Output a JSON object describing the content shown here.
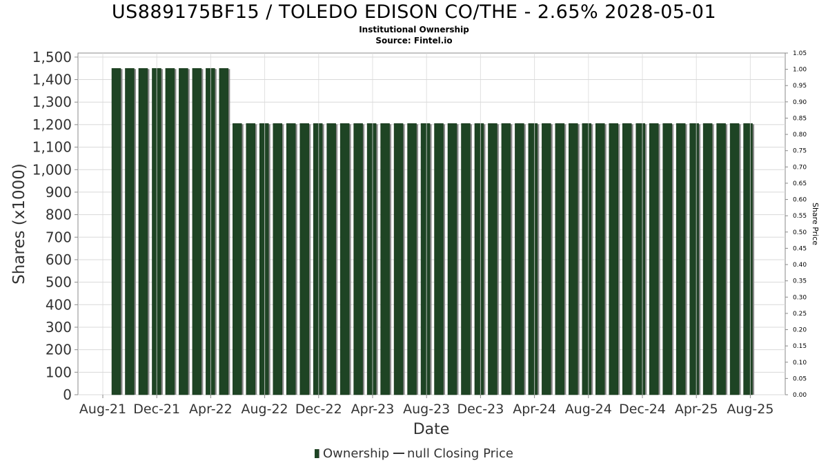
{
  "chart_data": {
    "type": "bar",
    "title": "US889175BF15 / TOLEDO EDISON CO/THE - 2.65% 2028-05-01",
    "subtitle": [
      "Institutional Ownership",
      "Source: Fintel.io"
    ],
    "xlabel": "Date",
    "ylabel": "Shares (x1000)",
    "y2label": "Share Price",
    "ylim": [
      0,
      1500
    ],
    "y_ticks": [
      "0",
      "100",
      "200",
      "300",
      "400",
      "500",
      "600",
      "700",
      "800",
      "900",
      "1,000",
      "1,100",
      "1,200",
      "1,300",
      "1,400",
      "1,500"
    ],
    "y2lim": [
      0,
      1.05
    ],
    "y2_ticks": [
      "0.00",
      "0.05",
      "0.10",
      "0.15",
      "0.20",
      "0.25",
      "0.30",
      "0.35",
      "0.40",
      "0.45",
      "0.50",
      "0.55",
      "0.60",
      "0.65",
      "0.70",
      "0.75",
      "0.80",
      "0.85",
      "0.90",
      "0.95",
      "1.00",
      "1.05"
    ],
    "x_ticks": [
      "Aug-21",
      "Dec-21",
      "Apr-22",
      "Aug-22",
      "Dec-22",
      "Apr-23",
      "Aug-23",
      "Dec-23",
      "Apr-24",
      "Aug-24",
      "Dec-24",
      "Apr-25",
      "Aug-25"
    ],
    "grid": true,
    "legend_position": "bottom-center",
    "legend": [
      "Ownership",
      "null Closing Price"
    ],
    "colors": {
      "bar": "#1e4424",
      "bar_shadow": "#8a8a8a",
      "grid": "#d8d8d8",
      "axis": "#888888"
    },
    "series": [
      {
        "name": "Ownership",
        "values": [
          1450,
          1450,
          1450,
          1450,
          1450,
          1450,
          1450,
          1450,
          1450,
          1205,
          1205,
          1205,
          1205,
          1205,
          1205,
          1205,
          1205,
          1205,
          1205,
          1205,
          1205,
          1205,
          1205,
          1205,
          1205,
          1205,
          1205,
          1205,
          1205,
          1205,
          1205,
          1205,
          1205,
          1205,
          1205,
          1205,
          1205,
          1205,
          1205,
          1205,
          1205,
          1205,
          1205,
          1205,
          1205,
          1205,
          1205,
          1205
        ]
      }
    ]
  }
}
